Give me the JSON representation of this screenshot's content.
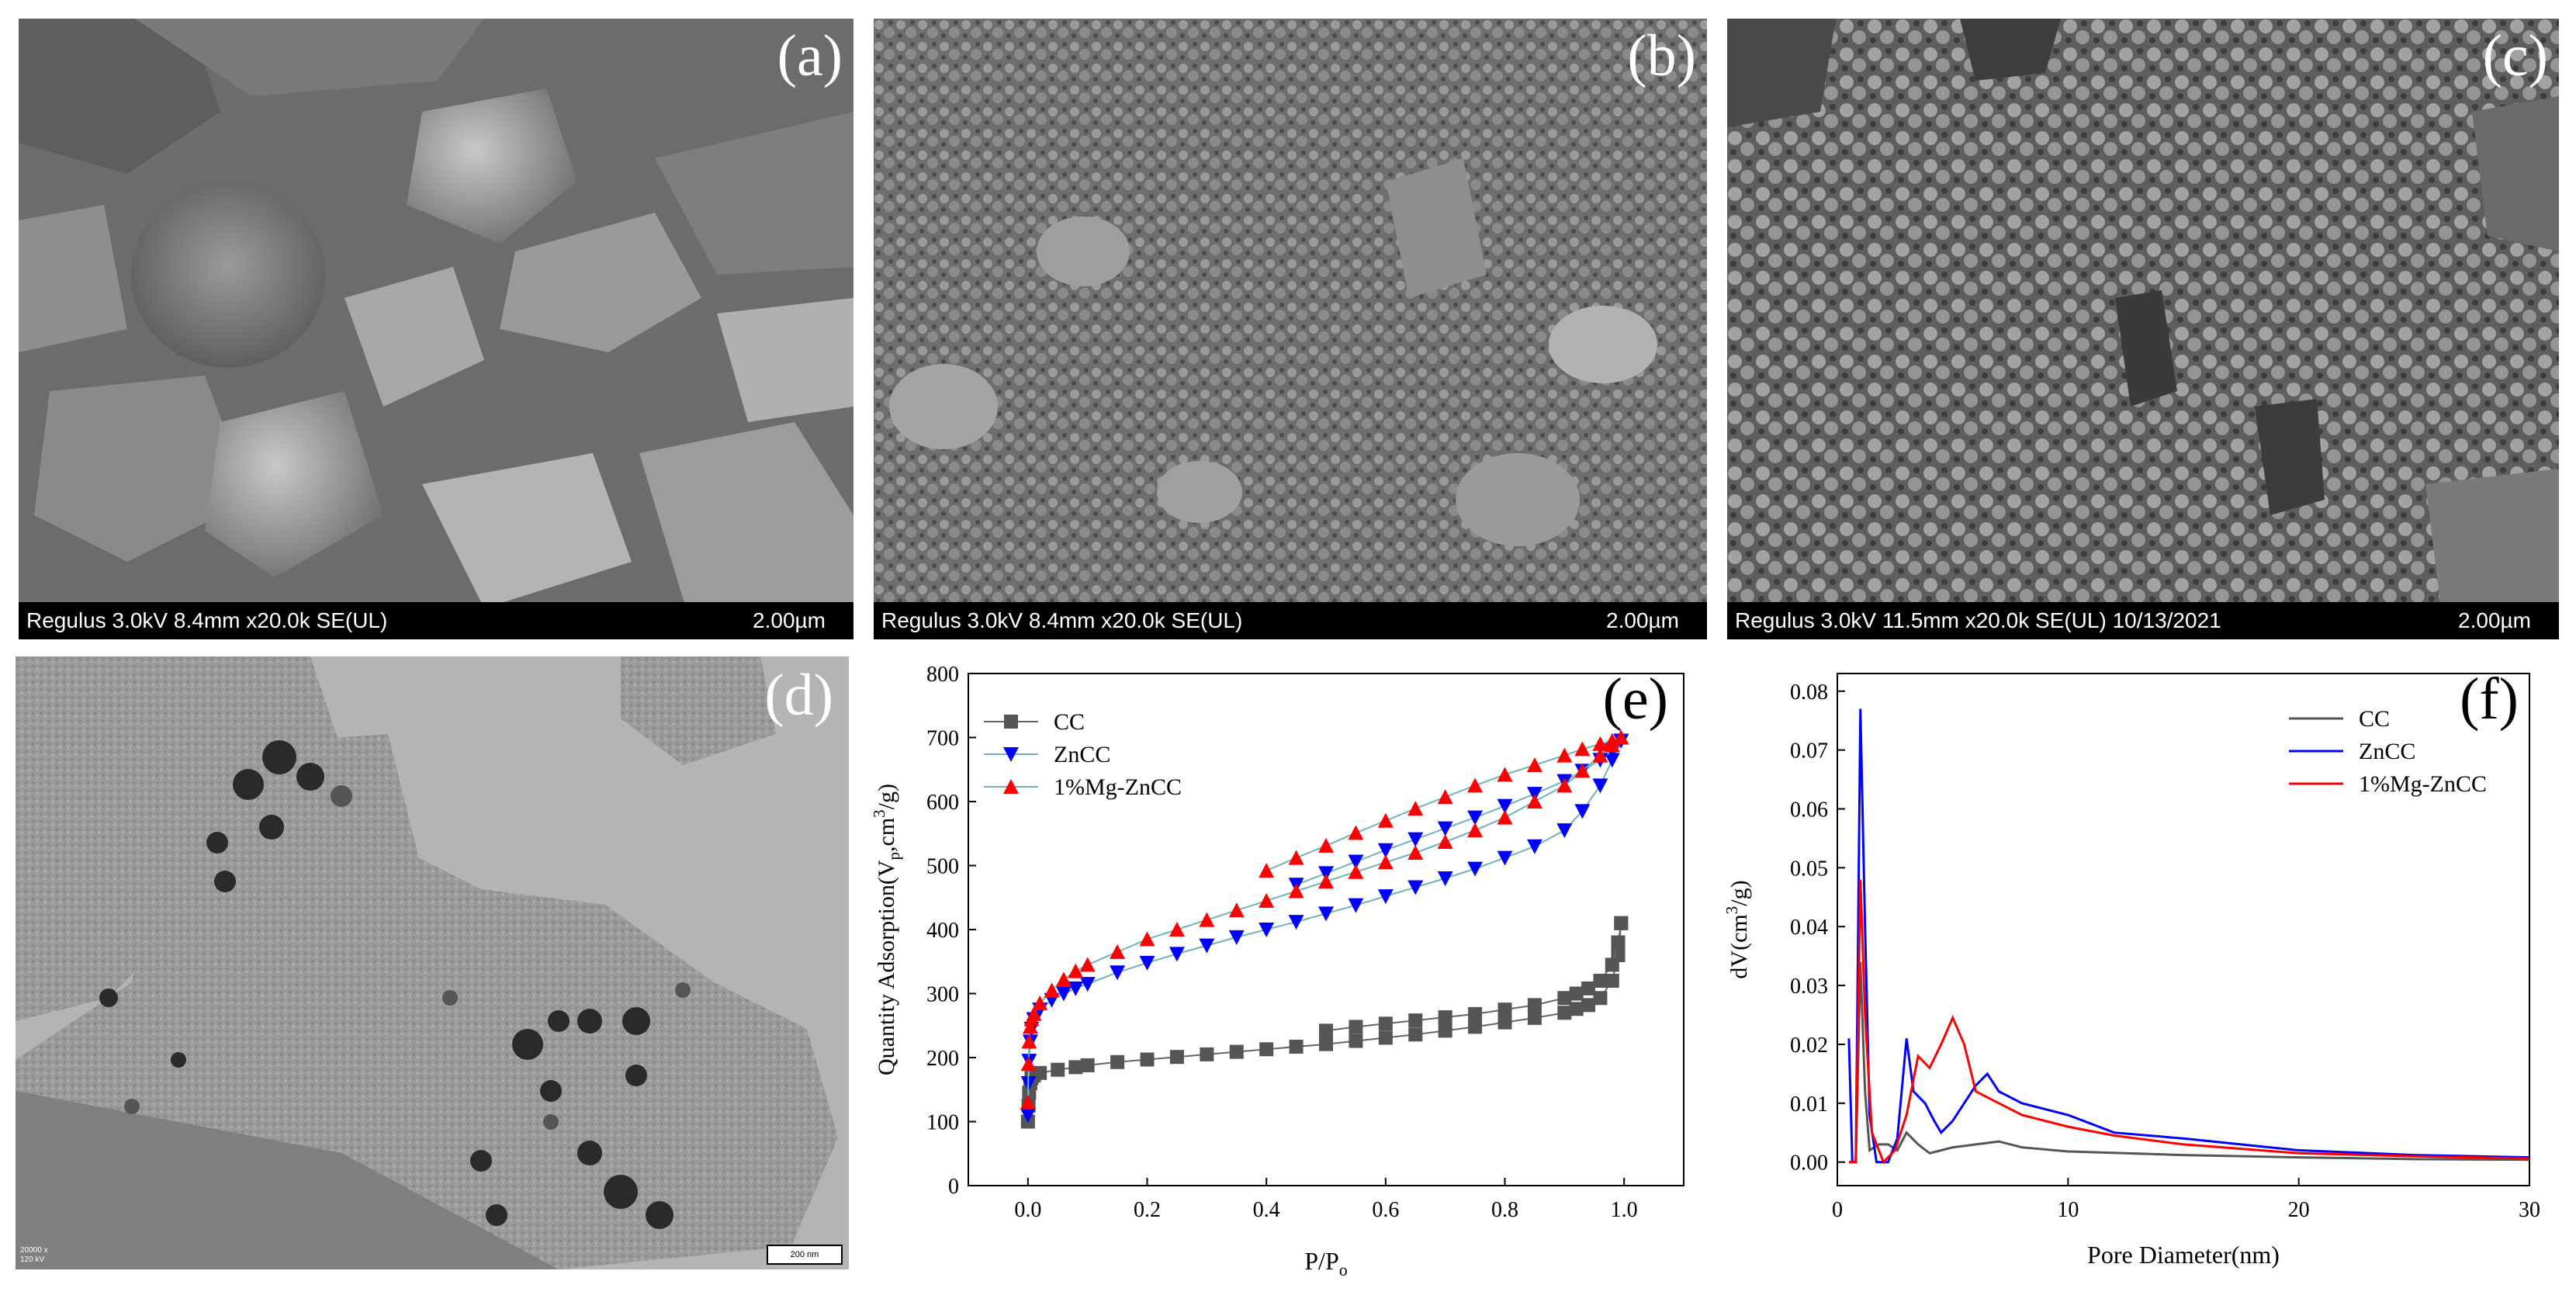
{
  "panels": {
    "a": {
      "label": "(a)",
      "info": "Regulus 3.0kV 8.4mm x20.0k SE(UL)",
      "scale": "2.00µm"
    },
    "b": {
      "label": "(b)",
      "info": "Regulus 3.0kV 8.4mm x20.0k SE(UL)",
      "scale": "2.00µm"
    },
    "c": {
      "label": "(c)",
      "info": "Regulus 3.0kV 11.5mm x20.0k SE(UL) 10/13/2021",
      "scale": "2.00µm"
    },
    "d": {
      "label": "(d)",
      "scale": "200 nm",
      "corner_line1": "20000 x",
      "corner_line2": "120 kV"
    },
    "e": {
      "label": "(e)"
    },
    "f": {
      "label": "(f)"
    }
  },
  "colors": {
    "CC": "#555555",
    "ZnCC": "#0000ff",
    "MgZnCC": "#ff0000",
    "tie": "#6fb3b8"
  },
  "chart_data": [
    {
      "panel": "e",
      "type": "line",
      "xlabel": "P/P",
      "xlabel_sub": "o",
      "ylabel": "Quantity Adsorption(V",
      "ylabel_sub": "p",
      "ylabel_rest": ",cm",
      "ylabel_sup": "3",
      "ylabel_end": "/g)",
      "xlim": [
        -0.1,
        1.1
      ],
      "ylim": [
        0,
        800
      ],
      "xticks": [
        0.0,
        0.2,
        0.4,
        0.6,
        0.8,
        1.0
      ],
      "xtick_labels": [
        "0.0",
        "0.2",
        "0.4",
        "0.6",
        "0.8",
        "1.0"
      ],
      "yticks": [
        0,
        100,
        200,
        300,
        400,
        500,
        600,
        700,
        800
      ],
      "ytick_labels": [
        "0",
        "100",
        "200",
        "300",
        "400",
        "500",
        "600",
        "700",
        "800"
      ],
      "legend_position": "top-left",
      "series": [
        {
          "name": "CC",
          "marker": "square",
          "adsorption": [
            [
              0.0,
              100
            ],
            [
              0.001,
              125
            ],
            [
              0.002,
              145
            ],
            [
              0.004,
              160
            ],
            [
              0.006,
              168
            ],
            [
              0.01,
              172
            ],
            [
              0.02,
              176
            ],
            [
              0.05,
              181
            ],
            [
              0.08,
              185
            ],
            [
              0.1,
              188
            ],
            [
              0.15,
              193
            ],
            [
              0.2,
              197
            ],
            [
              0.25,
              201
            ],
            [
              0.3,
              205
            ],
            [
              0.35,
              209
            ],
            [
              0.4,
              213
            ],
            [
              0.45,
              217
            ],
            [
              0.5,
              221
            ],
            [
              0.55,
              226
            ],
            [
              0.6,
              231
            ],
            [
              0.65,
              236
            ],
            [
              0.7,
              242
            ],
            [
              0.75,
              248
            ],
            [
              0.8,
              255
            ],
            [
              0.85,
              262
            ],
            [
              0.9,
              270
            ],
            [
              0.92,
              276
            ],
            [
              0.94,
              282
            ],
            [
              0.96,
              293
            ],
            [
              0.98,
              320
            ],
            [
              0.99,
              360
            ],
            [
              0.995,
              410
            ]
          ],
          "desorption": [
            [
              0.995,
              410
            ],
            [
              0.99,
              380
            ],
            [
              0.98,
              345
            ],
            [
              0.96,
              320
            ],
            [
              0.94,
              308
            ],
            [
              0.92,
              300
            ],
            [
              0.9,
              293
            ],
            [
              0.85,
              282
            ],
            [
              0.8,
              275
            ],
            [
              0.75,
              268
            ],
            [
              0.7,
              263
            ],
            [
              0.65,
              258
            ],
            [
              0.6,
              253
            ],
            [
              0.55,
              248
            ],
            [
              0.5,
              242
            ]
          ]
        },
        {
          "name": "ZnCC",
          "marker": "triangle-down",
          "adsorption": [
            [
              0.0,
              110
            ],
            [
              0.001,
              160
            ],
            [
              0.002,
              195
            ],
            [
              0.004,
              225
            ],
            [
              0.006,
              245
            ],
            [
              0.01,
              260
            ],
            [
              0.02,
              275
            ],
            [
              0.04,
              290
            ],
            [
              0.06,
              300
            ],
            [
              0.08,
              308
            ],
            [
              0.1,
              315
            ],
            [
              0.15,
              333
            ],
            [
              0.2,
              348
            ],
            [
              0.25,
              362
            ],
            [
              0.3,
              375
            ],
            [
              0.35,
              388
            ],
            [
              0.4,
              400
            ],
            [
              0.45,
              412
            ],
            [
              0.5,
              425
            ],
            [
              0.55,
              438
            ],
            [
              0.6,
              452
            ],
            [
              0.65,
              466
            ],
            [
              0.7,
              480
            ],
            [
              0.75,
              495
            ],
            [
              0.8,
              512
            ],
            [
              0.85,
              530
            ],
            [
              0.9,
              555
            ],
            [
              0.93,
              585
            ],
            [
              0.96,
              625
            ],
            [
              0.98,
              665
            ],
            [
              0.995,
              695
            ]
          ],
          "desorption": [
            [
              0.995,
              695
            ],
            [
              0.98,
              680
            ],
            [
              0.96,
              665
            ],
            [
              0.93,
              648
            ],
            [
              0.9,
              632
            ],
            [
              0.85,
              612
            ],
            [
              0.8,
              593
            ],
            [
              0.75,
              575
            ],
            [
              0.7,
              558
            ],
            [
              0.65,
              541
            ],
            [
              0.6,
              524
            ],
            [
              0.55,
              506
            ],
            [
              0.5,
              488
            ],
            [
              0.45,
              470
            ]
          ]
        },
        {
          "name": "1%Mg-ZnCC",
          "marker": "triangle-up",
          "adsorption": [
            [
              0.0,
              130
            ],
            [
              0.001,
              190
            ],
            [
              0.002,
              225
            ],
            [
              0.004,
              248
            ],
            [
              0.006,
              260
            ],
            [
              0.01,
              268
            ],
            [
              0.02,
              285
            ],
            [
              0.04,
              305
            ],
            [
              0.06,
              322
            ],
            [
              0.08,
              335
            ],
            [
              0.1,
              345
            ],
            [
              0.15,
              365
            ],
            [
              0.2,
              385
            ],
            [
              0.25,
              400
            ],
            [
              0.3,
              415
            ],
            [
              0.35,
              430
            ],
            [
              0.4,
              445
            ],
            [
              0.45,
              460
            ],
            [
              0.5,
              475
            ],
            [
              0.55,
              490
            ],
            [
              0.6,
              505
            ],
            [
              0.65,
              520
            ],
            [
              0.7,
              537
            ],
            [
              0.75,
              555
            ],
            [
              0.8,
              575
            ],
            [
              0.85,
              600
            ],
            [
              0.9,
              625
            ],
            [
              0.93,
              648
            ],
            [
              0.96,
              672
            ],
            [
              0.98,
              688
            ],
            [
              0.995,
              700
            ]
          ],
          "desorption": [
            [
              0.995,
              700
            ],
            [
              0.98,
              695
            ],
            [
              0.96,
              690
            ],
            [
              0.93,
              682
            ],
            [
              0.9,
              672
            ],
            [
              0.85,
              657
            ],
            [
              0.8,
              642
            ],
            [
              0.75,
              625
            ],
            [
              0.7,
              607
            ],
            [
              0.65,
              589
            ],
            [
              0.6,
              570
            ],
            [
              0.55,
              551
            ],
            [
              0.5,
              531
            ],
            [
              0.45,
              512
            ],
            [
              0.4,
              492
            ]
          ]
        }
      ]
    },
    {
      "panel": "f",
      "type": "line",
      "xlabel": "Pore Diameter(nm)",
      "ylabel": "dV(cm",
      "ylabel_sup": "3",
      "ylabel_end": "/g)",
      "xlim": [
        0,
        30
      ],
      "ylim": [
        -0.004,
        0.083
      ],
      "xticks": [
        0,
        10,
        20,
        30
      ],
      "xtick_labels": [
        "0",
        "10",
        "20",
        "30"
      ],
      "yticks": [
        0.0,
        0.01,
        0.02,
        0.03,
        0.04,
        0.05,
        0.06,
        0.07,
        0.08
      ],
      "ytick_labels": [
        "0.00",
        "0.01",
        "0.02",
        "0.03",
        "0.04",
        "0.05",
        "0.06",
        "0.07",
        "0.08"
      ],
      "legend_position": "top-right",
      "series": [
        {
          "name": "CC",
          "points": [
            [
              0.5,
              0
            ],
            [
              0.8,
              0
            ],
            [
              1.0,
              0.034
            ],
            [
              1.2,
              0.012
            ],
            [
              1.4,
              0.002
            ],
            [
              1.8,
              0.003
            ],
            [
              2.2,
              0.003
            ],
            [
              2.6,
              0.002
            ],
            [
              3.0,
              0.005
            ],
            [
              3.5,
              0.003
            ],
            [
              4.0,
              0.0015
            ],
            [
              4.5,
              0.002
            ],
            [
              5.0,
              0.0025
            ],
            [
              6.0,
              0.003
            ],
            [
              7.0,
              0.0035
            ],
            [
              8.0,
              0.0025
            ],
            [
              10,
              0.0018
            ],
            [
              15,
              0.0012
            ],
            [
              20,
              0.0008
            ],
            [
              25,
              0.0005
            ],
            [
              30,
              0.0004
            ]
          ]
        },
        {
          "name": "ZnCC",
          "points": [
            [
              0.5,
              0.021
            ],
            [
              0.65,
              0.0
            ],
            [
              0.8,
              0.0
            ],
            [
              1.0,
              0.077
            ],
            [
              1.2,
              0.04
            ],
            [
              1.4,
              0.008
            ],
            [
              1.7,
              0.0
            ],
            [
              2.2,
              0.0
            ],
            [
              2.6,
              0.004
            ],
            [
              3.0,
              0.021
            ],
            [
              3.3,
              0.012
            ],
            [
              3.8,
              0.01
            ],
            [
              4.2,
              0.007
            ],
            [
              4.5,
              0.005
            ],
            [
              5.0,
              0.007
            ],
            [
              5.5,
              0.01
            ],
            [
              6.0,
              0.013
            ],
            [
              6.5,
              0.015
            ],
            [
              7.0,
              0.012
            ],
            [
              8.0,
              0.01
            ],
            [
              9.0,
              0.009
            ],
            [
              10,
              0.008
            ],
            [
              12,
              0.005
            ],
            [
              15,
              0.004
            ],
            [
              20,
              0.002
            ],
            [
              25,
              0.0012
            ],
            [
              30,
              0.0008
            ]
          ]
        },
        {
          "name": "1%Mg-ZnCC",
          "points": [
            [
              0.5,
              0
            ],
            [
              0.8,
              0.0
            ],
            [
              1.0,
              0.048
            ],
            [
              1.2,
              0.025
            ],
            [
              1.5,
              0.005
            ],
            [
              2.0,
              0.0
            ],
            [
              2.5,
              0.002
            ],
            [
              3.0,
              0.008
            ],
            [
              3.5,
              0.018
            ],
            [
              4.0,
              0.016
            ],
            [
              4.5,
              0.02
            ],
            [
              5.0,
              0.0245
            ],
            [
              5.5,
              0.02
            ],
            [
              6.0,
              0.012
            ],
            [
              7.0,
              0.01
            ],
            [
              8.0,
              0.008
            ],
            [
              10,
              0.006
            ],
            [
              12,
              0.0045
            ],
            [
              15,
              0.003
            ],
            [
              20,
              0.0015
            ],
            [
              25,
              0.001
            ],
            [
              30,
              0.0006
            ]
          ]
        }
      ]
    }
  ]
}
